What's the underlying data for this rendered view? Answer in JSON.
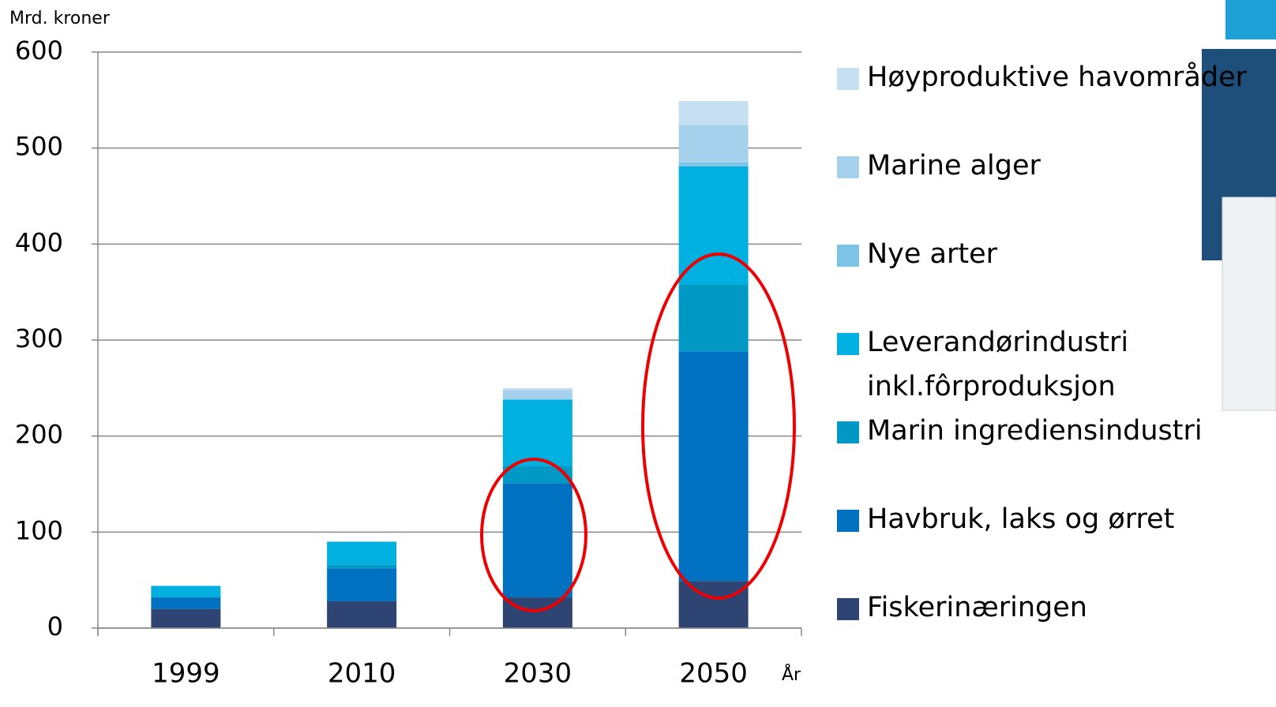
{
  "chart_data": {
    "type": "bar",
    "stacked": true,
    "y_label": "Mrd. kroner",
    "x_label": "År",
    "categories": [
      "1999",
      "2010",
      "2030",
      "2050"
    ],
    "series": [
      {
        "name": "Fiskerinæringen",
        "color": "#2e4473",
        "values": [
          20,
          28,
          32,
          49
        ]
      },
      {
        "name": "Havbruk, laks og ørret",
        "color": "#0070c0",
        "values": [
          12,
          34,
          119,
          239
        ]
      },
      {
        "name": "Marin ingrediensindustri",
        "color": "#0099c6",
        "values": [
          0,
          4,
          18,
          70
        ]
      },
      {
        "name": "Leverandørindustri inkl.fôrproduksjon",
        "color": "#00b0e0",
        "values": [
          12,
          24,
          69,
          123
        ]
      },
      {
        "name": "Nye arter",
        "color": "#7dc3e6",
        "values": [
          0,
          0,
          0,
          4
        ]
      },
      {
        "name": "Marine alger",
        "color": "#a6d1ec",
        "values": [
          0,
          0,
          10,
          39
        ]
      },
      {
        "name": "Høyproduktive havområder",
        "color": "#c6e0f2",
        "values": [
          0,
          0,
          2,
          25
        ]
      }
    ],
    "ylim": [
      0,
      600
    ],
    "yticks": [
      0,
      100,
      200,
      300,
      400,
      500,
      600
    ],
    "grid": true
  }
}
